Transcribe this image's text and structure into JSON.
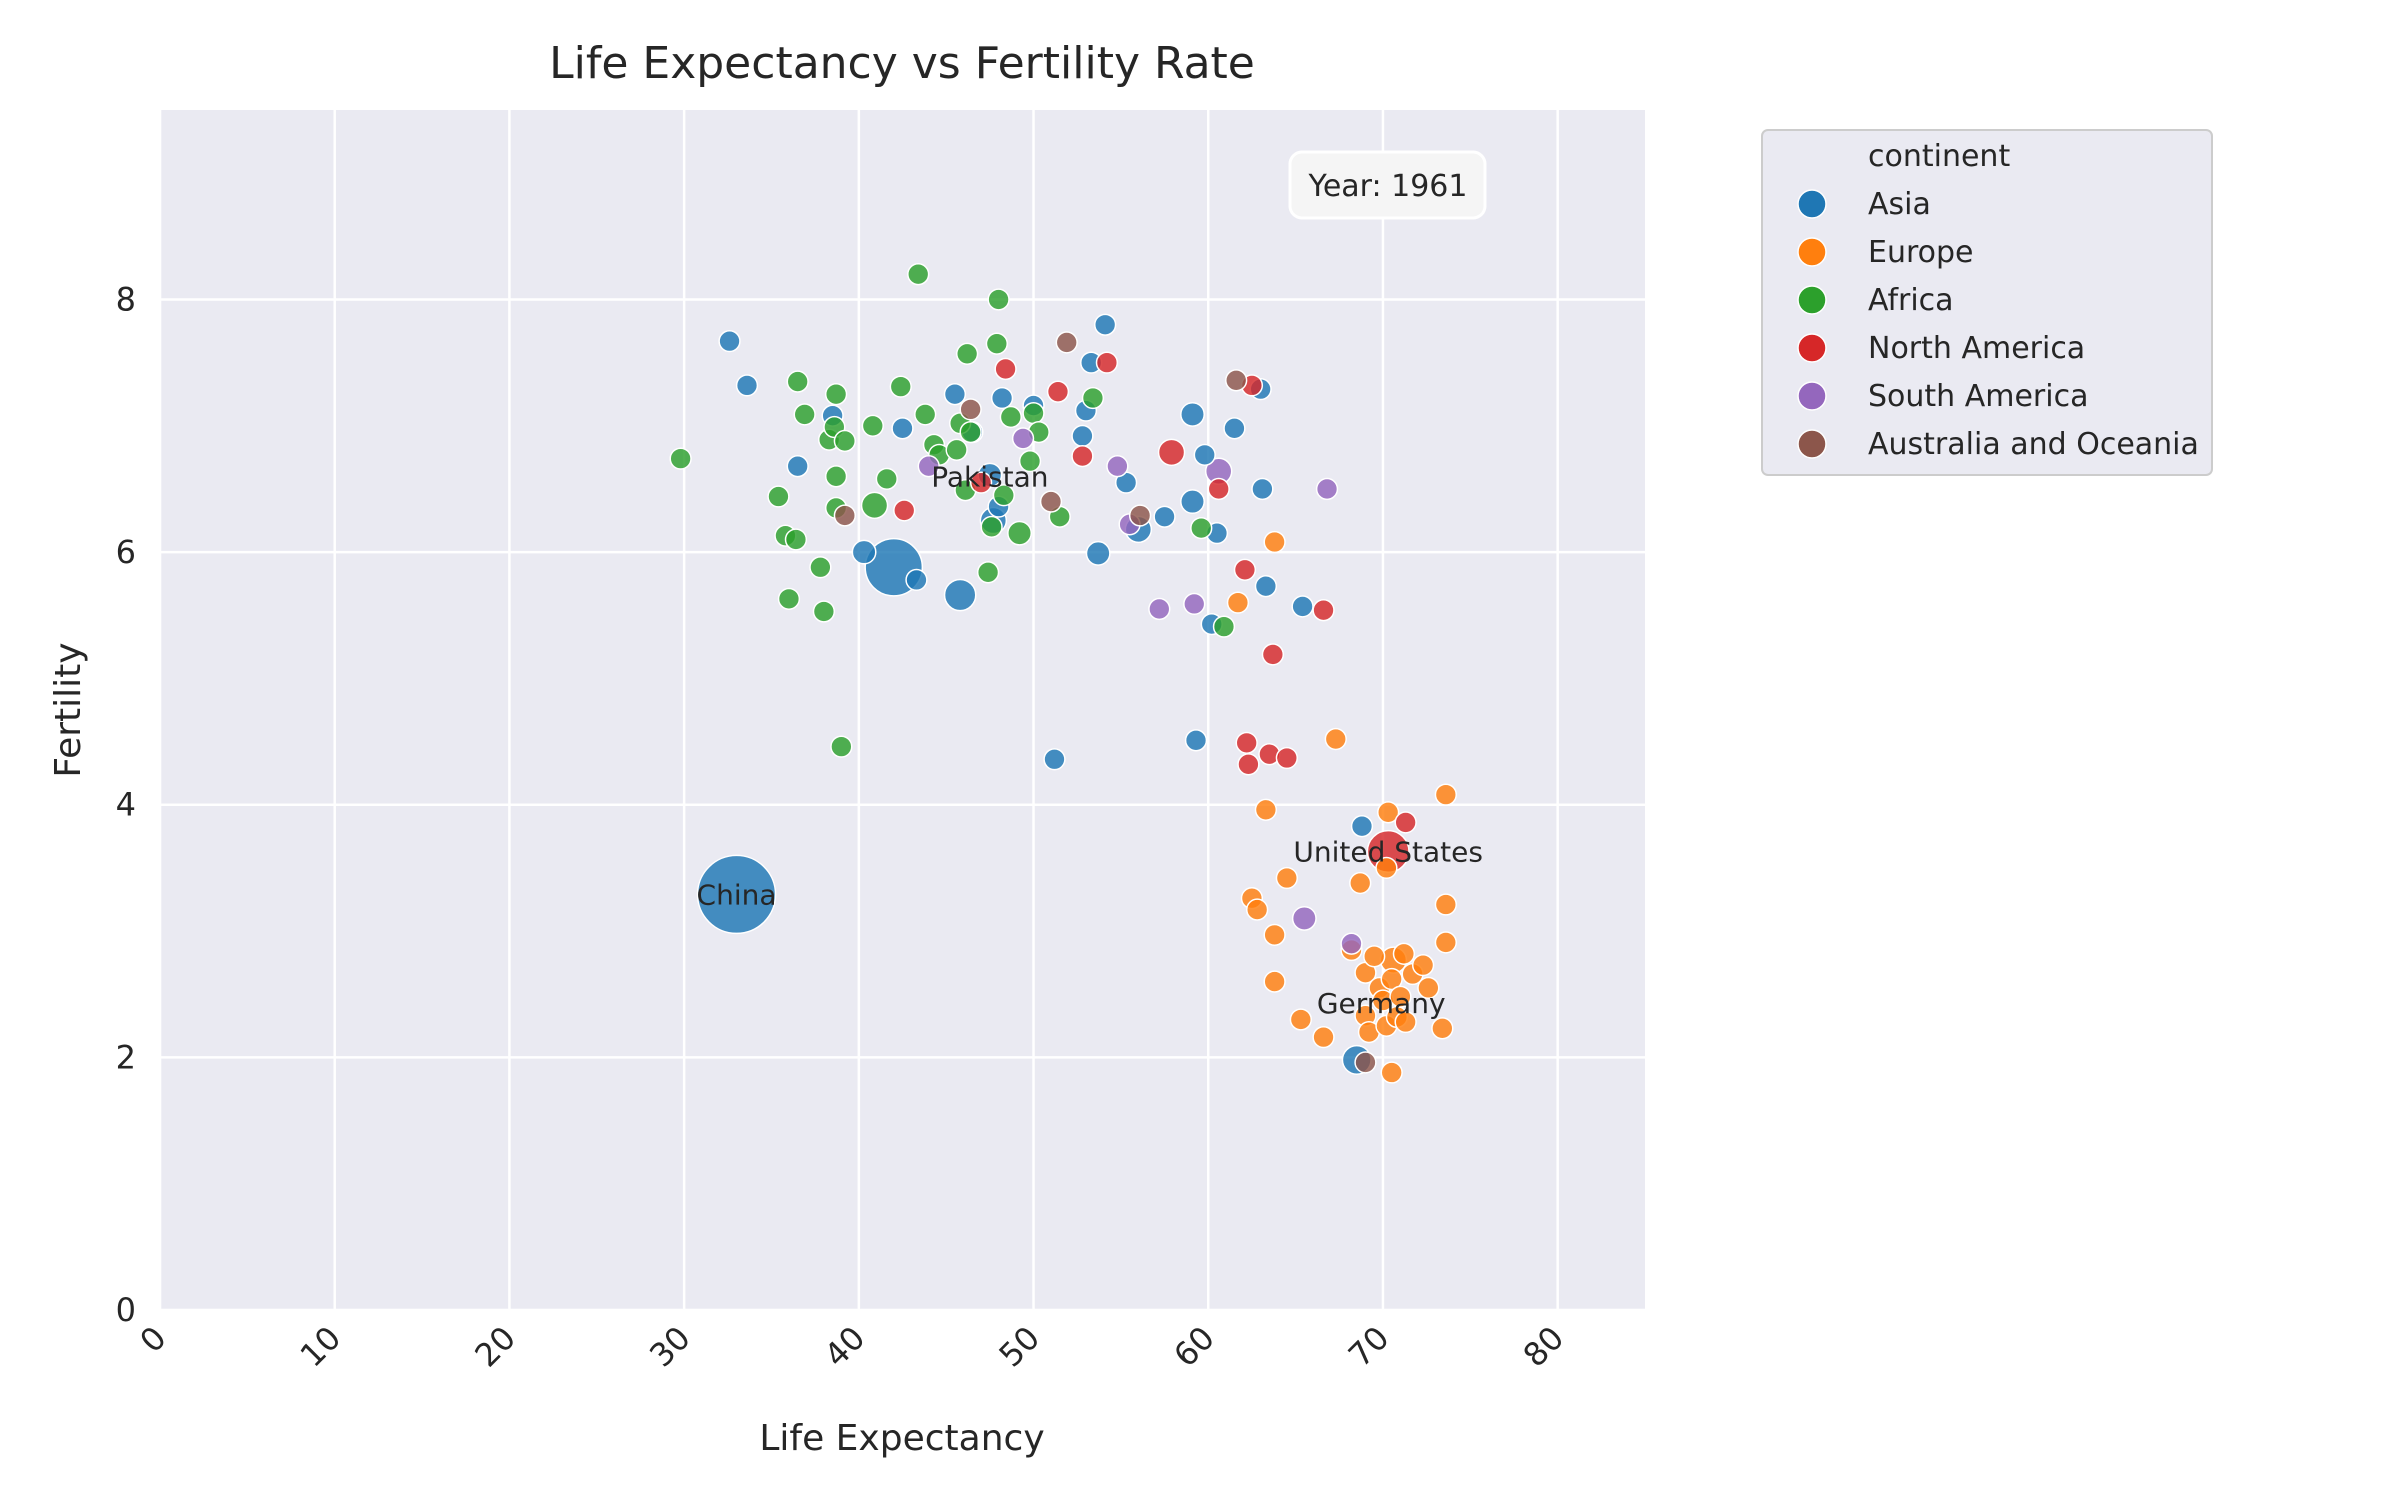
{
  "chart_data": {
    "type": "scatter",
    "title": "Life Expectancy vs Fertility Rate",
    "xlabel": "Life Expectancy",
    "ylabel": "Fertility",
    "xlim": [
      0,
      85
    ],
    "ylim": [
      0,
      9.5
    ],
    "xticks": [
      0,
      10,
      20,
      30,
      40,
      50,
      60,
      70,
      80
    ],
    "yticks": [
      0,
      2,
      4,
      6,
      8
    ],
    "grid": true,
    "year_label": "Year: 1961",
    "legend": {
      "title": "continent",
      "placement": "outside-top-right",
      "entries": [
        {
          "name": "Asia",
          "color": "#1f77b4"
        },
        {
          "name": "Europe",
          "color": "#ff7f0e"
        },
        {
          "name": "Africa",
          "color": "#2ca02c"
        },
        {
          "name": "North America",
          "color": "#d62728"
        },
        {
          "name": "South America",
          "color": "#9467bd"
        },
        {
          "name": "Australia and Oceania",
          "color": "#8c564b"
        }
      ]
    },
    "annotations": [
      {
        "text": "China",
        "x": 33.0,
        "y": 3.29
      },
      {
        "text": "Pakistan",
        "x": 47.5,
        "y": 6.6
      },
      {
        "text": "United States",
        "x": 70.3,
        "y": 3.63
      },
      {
        "text": "Germany",
        "x": 69.9,
        "y": 2.43
      }
    ],
    "series": [
      {
        "name": "Asia",
        "points": [
          [
            33.0,
            3.29,
            3
          ],
          [
            42.0,
            5.88,
            2.2
          ],
          [
            45.8,
            5.66,
            1.2
          ],
          [
            68.5,
            1.98,
            1.1
          ],
          [
            32.6,
            7.67,
            0.8
          ],
          [
            33.6,
            7.32,
            0.8
          ],
          [
            36.5,
            6.68,
            0.8
          ],
          [
            38.5,
            7.08,
            0.8
          ],
          [
            40.3,
            6.0,
            0.9
          ],
          [
            42.5,
            6.98,
            0.8
          ],
          [
            43.3,
            5.78,
            0.8
          ],
          [
            45.5,
            7.25,
            0.8
          ],
          [
            46.5,
            6.95,
            0.8
          ],
          [
            47.5,
            6.61,
            0.9
          ],
          [
            47.7,
            6.25,
            1.0
          ],
          [
            48.0,
            6.36,
            0.8
          ],
          [
            48.2,
            7.22,
            0.8
          ],
          [
            50.0,
            7.16,
            0.8
          ],
          [
            51.2,
            4.36,
            0.8
          ],
          [
            52.8,
            6.92,
            0.8
          ],
          [
            53.0,
            7.12,
            0.8
          ],
          [
            53.3,
            7.5,
            0.8
          ],
          [
            53.7,
            5.99,
            0.9
          ],
          [
            54.1,
            7.8,
            0.8
          ],
          [
            55.3,
            6.55,
            0.8
          ],
          [
            56.0,
            6.18,
            1.0
          ],
          [
            57.5,
            6.28,
            0.8
          ],
          [
            59.1,
            7.09,
            0.9
          ],
          [
            59.1,
            6.4,
            0.9
          ],
          [
            59.3,
            4.51,
            0.8
          ],
          [
            59.8,
            6.77,
            0.8
          ],
          [
            60.2,
            5.43,
            0.8
          ],
          [
            60.5,
            6.15,
            0.8
          ],
          [
            61.5,
            6.98,
            0.8
          ],
          [
            63.0,
            7.29,
            0.8
          ],
          [
            63.1,
            6.5,
            0.8
          ],
          [
            63.3,
            5.73,
            0.8
          ],
          [
            65.4,
            5.57,
            0.8
          ],
          [
            68.8,
            3.83,
            0.8
          ]
        ]
      },
      {
        "name": "Europe",
        "points": [
          [
            61.7,
            5.6,
            0.8
          ],
          [
            62.5,
            3.26,
            0.8
          ],
          [
            62.8,
            3.17,
            0.8
          ],
          [
            63.3,
            3.96,
            0.8
          ],
          [
            63.8,
            6.08,
            0.8
          ],
          [
            63.8,
            2.97,
            0.8
          ],
          [
            63.8,
            2.6,
            0.8
          ],
          [
            64.5,
            3.42,
            0.8
          ],
          [
            65.3,
            2.3,
            0.8
          ],
          [
            66.6,
            2.16,
            0.8
          ],
          [
            67.3,
            4.52,
            0.8
          ],
          [
            68.2,
            2.85,
            0.8
          ],
          [
            68.7,
            3.38,
            0.8
          ],
          [
            69.0,
            2.67,
            0.8
          ],
          [
            69.0,
            2.33,
            0.8
          ],
          [
            69.2,
            2.2,
            0.8
          ],
          [
            69.5,
            2.8,
            0.8
          ],
          [
            69.8,
            2.55,
            0.8
          ],
          [
            70.0,
            2.45,
            0.8
          ],
          [
            70.2,
            2.25,
            0.8
          ],
          [
            70.2,
            3.5,
            0.8
          ],
          [
            70.3,
            3.94,
            0.8
          ],
          [
            70.5,
            2.62,
            0.8
          ],
          [
            70.5,
            1.88,
            0.8
          ],
          [
            70.6,
            2.77,
            1.0
          ],
          [
            70.8,
            2.32,
            0.8
          ],
          [
            71.0,
            2.48,
            0.8
          ],
          [
            71.2,
            2.82,
            0.8
          ],
          [
            71.3,
            2.28,
            0.8
          ],
          [
            71.7,
            2.66,
            0.8
          ],
          [
            72.3,
            2.73,
            0.8
          ],
          [
            72.6,
            2.55,
            0.8
          ],
          [
            73.4,
            2.23,
            0.8
          ],
          [
            73.6,
            3.21,
            0.8
          ],
          [
            73.6,
            2.91,
            0.8
          ],
          [
            73.6,
            4.08,
            0.8
          ]
        ]
      },
      {
        "name": "Africa",
        "points": [
          [
            29.8,
            6.74,
            0.8
          ],
          [
            35.4,
            6.44,
            0.8
          ],
          [
            35.8,
            6.13,
            0.8
          ],
          [
            36.0,
            5.63,
            0.8
          ],
          [
            36.4,
            6.1,
            0.8
          ],
          [
            36.5,
            7.35,
            0.8
          ],
          [
            36.9,
            7.09,
            0.8
          ],
          [
            37.8,
            5.88,
            0.8
          ],
          [
            38.0,
            5.53,
            0.8
          ],
          [
            38.3,
            6.89,
            0.8
          ],
          [
            38.6,
            6.99,
            0.8
          ],
          [
            38.7,
            6.6,
            0.8
          ],
          [
            38.7,
            7.25,
            0.8
          ],
          [
            38.7,
            6.35,
            0.8
          ],
          [
            39.0,
            4.46,
            0.8
          ],
          [
            39.2,
            6.88,
            0.8
          ],
          [
            40.8,
            7.0,
            0.8
          ],
          [
            40.9,
            6.37,
            1.0
          ],
          [
            41.6,
            6.58,
            0.8
          ],
          [
            42.4,
            7.31,
            0.8
          ],
          [
            43.4,
            8.2,
            0.8
          ],
          [
            43.8,
            7.09,
            0.8
          ],
          [
            44.3,
            6.85,
            0.8
          ],
          [
            44.6,
            6.77,
            0.8
          ],
          [
            45.6,
            6.81,
            0.8
          ],
          [
            45.8,
            7.02,
            0.8
          ],
          [
            46.1,
            6.49,
            0.8
          ],
          [
            46.2,
            7.57,
            0.8
          ],
          [
            46.4,
            6.95,
            0.8
          ],
          [
            47.4,
            5.84,
            0.8
          ],
          [
            47.6,
            6.2,
            0.8
          ],
          [
            47.9,
            7.65,
            0.8
          ],
          [
            48.0,
            8.0,
            0.8
          ],
          [
            48.3,
            6.45,
            0.8
          ],
          [
            48.7,
            7.07,
            0.8
          ],
          [
            49.2,
            6.15,
            0.9
          ],
          [
            49.8,
            6.72,
            0.8
          ],
          [
            50.0,
            7.1,
            0.8
          ],
          [
            50.3,
            6.95,
            0.8
          ],
          [
            51.5,
            6.28,
            0.8
          ],
          [
            53.4,
            7.22,
            0.8
          ],
          [
            59.6,
            6.19,
            0.8
          ],
          [
            60.9,
            5.41,
            0.8
          ]
        ]
      },
      {
        "name": "North America",
        "points": [
          [
            70.3,
            3.63,
            1.6
          ],
          [
            42.6,
            6.33,
            0.8
          ],
          [
            47.0,
            6.55,
            0.8
          ],
          [
            48.4,
            7.45,
            0.8
          ],
          [
            51.4,
            7.27,
            0.8
          ],
          [
            52.8,
            6.76,
            0.8
          ],
          [
            54.2,
            7.5,
            0.8
          ],
          [
            57.9,
            6.79,
            1.0
          ],
          [
            60.6,
            6.5,
            0.8
          ],
          [
            62.1,
            5.86,
            0.8
          ],
          [
            62.2,
            4.49,
            0.8
          ],
          [
            62.3,
            4.32,
            0.8
          ],
          [
            62.5,
            7.32,
            0.8
          ],
          [
            63.5,
            4.4,
            0.8
          ],
          [
            63.7,
            5.19,
            0.8
          ],
          [
            64.5,
            4.37,
            0.8
          ],
          [
            66.6,
            5.54,
            0.8
          ],
          [
            71.3,
            3.86,
            0.8
          ]
        ]
      },
      {
        "name": "South America",
        "points": [
          [
            44.0,
            6.68,
            0.8
          ],
          [
            49.4,
            6.9,
            0.8
          ],
          [
            54.8,
            6.68,
            0.8
          ],
          [
            55.5,
            6.22,
            0.8
          ],
          [
            57.2,
            5.55,
            0.8
          ],
          [
            59.2,
            5.59,
            0.8
          ],
          [
            60.6,
            6.64,
            1.0
          ],
          [
            65.5,
            3.1,
            0.9
          ],
          [
            66.8,
            6.5,
            0.8
          ],
          [
            68.2,
            2.9,
            0.8
          ]
        ]
      },
      {
        "name": "Australia and Oceania",
        "points": [
          [
            39.2,
            6.29,
            0.8
          ],
          [
            46.4,
            7.13,
            0.8
          ],
          [
            51.0,
            6.4,
            0.8
          ],
          [
            51.9,
            7.66,
            0.8
          ],
          [
            56.1,
            6.29,
            0.8
          ],
          [
            61.6,
            7.36,
            0.8
          ],
          [
            69.0,
            1.96,
            0.8
          ]
        ]
      }
    ]
  }
}
